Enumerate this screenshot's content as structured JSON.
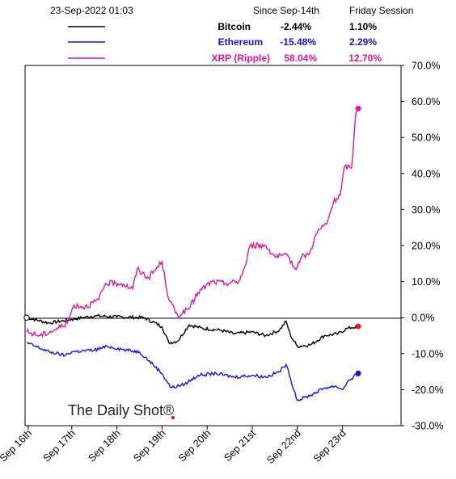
{
  "header": {
    "timestamp": "23-Sep-2022 01:03",
    "col_since": "Since Sep-14th",
    "col_session": "Friday Session"
  },
  "legend": [
    {
      "name": "Bitcoin",
      "since": "-2.44%",
      "session": "1.10%",
      "color": "#000000"
    },
    {
      "name": "Ethereum",
      "since": "-15.48%",
      "session": "2.29%",
      "color": "#1414e6"
    },
    {
      "name": "XRP (Ripple)",
      "since": "58.04%",
      "session": "12.70%",
      "color": "#e0189c"
    }
  ],
  "watermark": "The Daily Shot®",
  "chart_data": {
    "type": "line",
    "x_categories": [
      "Sep 16th",
      "Sep 17th",
      "Sep 18th",
      "Sep 19th",
      "Sep 20th",
      "Sep 21st",
      "Sep 22nd",
      "Sep 23rd"
    ],
    "y_ticks": [
      "70.0%",
      "60.0%",
      "50.0%",
      "40.0%",
      "30.0%",
      "20.0%",
      "10.0%",
      "0.0%",
      "-10.0%",
      "-20.0%",
      "-30.0%"
    ],
    "ylim": [
      -30,
      70
    ],
    "xlim": [
      0,
      7.7
    ],
    "series": [
      {
        "name": "Bitcoin",
        "color": "#000000",
        "points": [
          [
            0,
            0
          ],
          [
            0.5,
            -1.5
          ],
          [
            1.0,
            -0.5
          ],
          [
            1.5,
            0.5
          ],
          [
            2.0,
            0.2
          ],
          [
            2.6,
            0
          ],
          [
            3.0,
            -2.5
          ],
          [
            3.15,
            -7
          ],
          [
            3.35,
            -6.5
          ],
          [
            3.6,
            -2
          ],
          [
            3.9,
            -3
          ],
          [
            4.3,
            -3.5
          ],
          [
            4.6,
            -4.5
          ],
          [
            5.0,
            -4
          ],
          [
            5.3,
            -5
          ],
          [
            5.6,
            -3.5
          ],
          [
            5.75,
            -1
          ],
          [
            5.85,
            -5
          ],
          [
            6.0,
            -8
          ],
          [
            6.3,
            -7.5
          ],
          [
            6.6,
            -5
          ],
          [
            6.9,
            -4.5
          ],
          [
            7.1,
            -3
          ],
          [
            7.2,
            -2.8
          ],
          [
            7.35,
            -2.44
          ]
        ]
      },
      {
        "name": "Ethereum",
        "color": "#1414e6",
        "points": [
          [
            0,
            -7
          ],
          [
            0.5,
            -9.5
          ],
          [
            0.85,
            -10.5
          ],
          [
            1.0,
            -9.5
          ],
          [
            1.5,
            -9
          ],
          [
            1.8,
            -8
          ],
          [
            2.2,
            -9
          ],
          [
            2.5,
            -9.5
          ],
          [
            2.8,
            -13
          ],
          [
            3.0,
            -15.5
          ],
          [
            3.2,
            -19.5
          ],
          [
            3.5,
            -18.5
          ],
          [
            3.8,
            -16
          ],
          [
            4.2,
            -15.5
          ],
          [
            4.6,
            -16.5
          ],
          [
            5.0,
            -16
          ],
          [
            5.3,
            -16.5
          ],
          [
            5.6,
            -15
          ],
          [
            5.75,
            -13
          ],
          [
            5.85,
            -17
          ],
          [
            6.0,
            -23
          ],
          [
            6.3,
            -21.5
          ],
          [
            6.6,
            -19.5
          ],
          [
            6.85,
            -19
          ],
          [
            7.0,
            -20
          ],
          [
            7.1,
            -18
          ],
          [
            7.2,
            -17
          ],
          [
            7.35,
            -15.48
          ]
        ]
      },
      {
        "name": "XRP (Ripple)",
        "color": "#e0189c",
        "points": [
          [
            0,
            -4
          ],
          [
            0.3,
            -5
          ],
          [
            0.6,
            -3.5
          ],
          [
            0.9,
            -1.5
          ],
          [
            1.05,
            3.5
          ],
          [
            1.3,
            3
          ],
          [
            1.6,
            5
          ],
          [
            1.75,
            9.5
          ],
          [
            2.1,
            9.5
          ],
          [
            2.35,
            8
          ],
          [
            2.45,
            13.5
          ],
          [
            2.7,
            11
          ],
          [
            3.0,
            15.5
          ],
          [
            3.15,
            5
          ],
          [
            3.35,
            0.5
          ],
          [
            3.6,
            2.5
          ],
          [
            3.8,
            7
          ],
          [
            4.1,
            10
          ],
          [
            4.4,
            9.5
          ],
          [
            4.7,
            10
          ],
          [
            4.85,
            14.5
          ],
          [
            4.95,
            20
          ],
          [
            5.3,
            20
          ],
          [
            5.5,
            17
          ],
          [
            5.8,
            17
          ],
          [
            5.95,
            13.5
          ],
          [
            6.1,
            17
          ],
          [
            6.25,
            17.5
          ],
          [
            6.45,
            24
          ],
          [
            6.65,
            26
          ],
          [
            6.8,
            32
          ],
          [
            6.95,
            34
          ],
          [
            7.05,
            42
          ],
          [
            7.2,
            41.5
          ],
          [
            7.25,
            49
          ],
          [
            7.3,
            57
          ],
          [
            7.35,
            58.04
          ]
        ]
      }
    ]
  }
}
